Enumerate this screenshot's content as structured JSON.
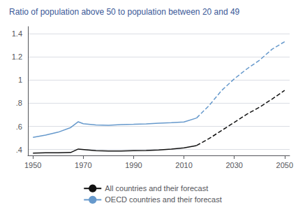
{
  "chart_data": {
    "type": "line",
    "title": "Ratio of population above 50 to population between 20 and 49",
    "xlim": [
      1948,
      2052
    ],
    "xticks": [
      1950,
      1970,
      1990,
      2010,
      2030,
      2050
    ],
    "ylim": [
      0.35,
      1.46
    ],
    "yticks": [
      {
        "value": 0.4,
        "label": ".4"
      },
      {
        "value": 0.6,
        "label": ".6"
      },
      {
        "value": 0.8,
        "label": ".8"
      },
      1,
      1.2,
      1.4
    ],
    "grid": true,
    "legend": "bottom",
    "series": [
      {
        "name": "All countries and their forecast",
        "color": "#111111",
        "line_style": "solid",
        "x": [
          1950,
          1955,
          1960,
          1965,
          1968,
          1975,
          1980,
          1985,
          1990,
          1995,
          2000,
          2005,
          2010,
          2015
        ],
        "values": [
          0.37,
          0.372,
          0.373,
          0.375,
          0.405,
          0.39,
          0.387,
          0.387,
          0.39,
          0.392,
          0.397,
          0.405,
          0.415,
          0.435
        ]
      },
      {
        "name": "All countries and their forecast",
        "color": "#111111",
        "line_style": "dashed",
        "x": [
          2015,
          2020,
          2025,
          2030,
          2035,
          2040,
          2045,
          2050
        ],
        "values": [
          0.435,
          0.495,
          0.565,
          0.635,
          0.705,
          0.765,
          0.835,
          0.91
        ]
      },
      {
        "name": "OECD countries and their forecast",
        "color": "#6699cc",
        "line_style": "solid",
        "x": [
          1950,
          1955,
          1960,
          1965,
          1968,
          1970,
          1975,
          1980,
          1985,
          1990,
          1995,
          2000,
          2005,
          2010,
          2015
        ],
        "values": [
          0.505,
          0.525,
          0.55,
          0.59,
          0.64,
          0.623,
          0.612,
          0.61,
          0.615,
          0.618,
          0.622,
          0.628,
          0.632,
          0.638,
          0.672
        ]
      },
      {
        "name": "OECD countries and their forecast",
        "color": "#6699cc",
        "line_style": "dashed",
        "x": [
          2015,
          2020,
          2025,
          2030,
          2035,
          2040,
          2045,
          2050
        ],
        "values": [
          0.672,
          0.78,
          0.91,
          1.01,
          1.095,
          1.17,
          1.265,
          1.33
        ]
      }
    ]
  }
}
